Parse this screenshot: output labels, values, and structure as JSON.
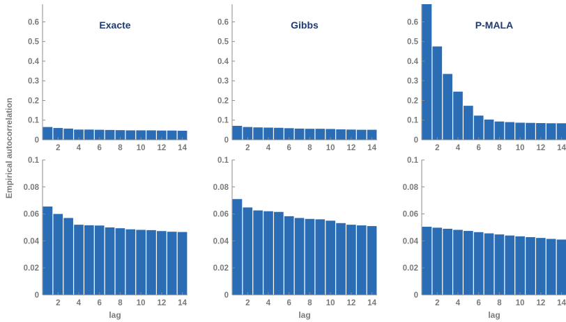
{
  "figure": {
    "ylabel": "Empirical autocorrelation",
    "bar_color": "#2b6db5",
    "axis_color": "#8c8c8c",
    "title_color": "#1f3a6e"
  },
  "chart_data": [
    {
      "type": "bar",
      "title": "Exacte",
      "xlabel": "",
      "ylim": [
        0,
        0.69
      ],
      "y_ticks": [
        0,
        0.1,
        0.2,
        0.3,
        0.4,
        0.5,
        0.6
      ],
      "x_ticks": [
        2,
        4,
        6,
        8,
        10,
        12,
        14
      ],
      "x": [
        1,
        2,
        3,
        4,
        5,
        6,
        7,
        8,
        9,
        10,
        11,
        12,
        13,
        14
      ],
      "values": [
        0.065,
        0.06,
        0.057,
        0.052,
        0.052,
        0.051,
        0.05,
        0.049,
        0.048,
        0.048,
        0.048,
        0.047,
        0.047,
        0.046
      ]
    },
    {
      "type": "bar",
      "title": "Gibbs",
      "xlabel": "",
      "ylim": [
        0,
        0.69
      ],
      "y_ticks": [
        0,
        0.1,
        0.2,
        0.3,
        0.4,
        0.5,
        0.6
      ],
      "x_ticks": [
        2,
        4,
        6,
        8,
        10,
        12,
        14
      ],
      "x": [
        1,
        2,
        3,
        4,
        5,
        6,
        7,
        8,
        9,
        10,
        11,
        12,
        13,
        14
      ],
      "values": [
        0.071,
        0.065,
        0.063,
        0.062,
        0.061,
        0.059,
        0.057,
        0.056,
        0.056,
        0.055,
        0.053,
        0.052,
        0.051,
        0.051
      ]
    },
    {
      "type": "bar",
      "title": "P-MALA",
      "xlabel": "",
      "ylim": [
        0,
        0.69
      ],
      "y_ticks": [
        0,
        0.1,
        0.2,
        0.3,
        0.4,
        0.5,
        0.6
      ],
      "x_ticks": [
        2,
        4,
        6,
        8,
        10,
        12,
        14
      ],
      "x": [
        1,
        2,
        3,
        4,
        5,
        6,
        7,
        8,
        9,
        10,
        11,
        12,
        13,
        14,
        15
      ],
      "values": [
        0.69,
        0.475,
        0.335,
        0.245,
        0.173,
        0.123,
        0.103,
        0.093,
        0.09,
        0.087,
        0.086,
        0.085,
        0.084,
        0.084,
        0.083
      ]
    },
    {
      "type": "bar",
      "title": "",
      "xlabel": "lag",
      "ylim": [
        0,
        0.1
      ],
      "y_ticks": [
        0,
        0.02,
        0.04,
        0.06,
        0.08,
        0.1
      ],
      "x_ticks": [
        2,
        4,
        6,
        8,
        10,
        12,
        14
      ],
      "x": [
        1,
        2,
        3,
        4,
        5,
        6,
        7,
        8,
        9,
        10,
        11,
        12,
        13,
        14
      ],
      "values": [
        0.0655,
        0.06,
        0.057,
        0.052,
        0.0516,
        0.0514,
        0.05,
        0.0494,
        0.0486,
        0.0482,
        0.048,
        0.0473,
        0.0468,
        0.0466
      ]
    },
    {
      "type": "bar",
      "title": "",
      "xlabel": "lag",
      "ylim": [
        0,
        0.1
      ],
      "y_ticks": [
        0,
        0.02,
        0.04,
        0.06,
        0.08,
        0.1
      ],
      "x_ticks": [
        2,
        4,
        6,
        8,
        10,
        12,
        14
      ],
      "x": [
        1,
        2,
        3,
        4,
        5,
        6,
        7,
        8,
        9,
        10,
        11,
        12,
        13,
        14
      ],
      "values": [
        0.071,
        0.0648,
        0.0626,
        0.062,
        0.0615,
        0.0583,
        0.057,
        0.0563,
        0.056,
        0.055,
        0.0532,
        0.052,
        0.0515,
        0.051
      ]
    },
    {
      "type": "bar",
      "title": "",
      "xlabel": "lag",
      "ylim": [
        0,
        0.1
      ],
      "y_ticks": [
        0,
        0.02,
        0.04,
        0.06,
        0.08,
        0.1
      ],
      "x_ticks": [
        2,
        4,
        6,
        8,
        10,
        12,
        14
      ],
      "x": [
        1,
        2,
        3,
        4,
        5,
        6,
        7,
        8,
        9,
        10,
        11,
        12,
        13,
        14,
        15
      ],
      "values": [
        0.0505,
        0.0498,
        0.049,
        0.0482,
        0.0474,
        0.0465,
        0.0456,
        0.0448,
        0.044,
        0.0434,
        0.0428,
        0.0422,
        0.0415,
        0.041,
        0.0405
      ]
    }
  ]
}
